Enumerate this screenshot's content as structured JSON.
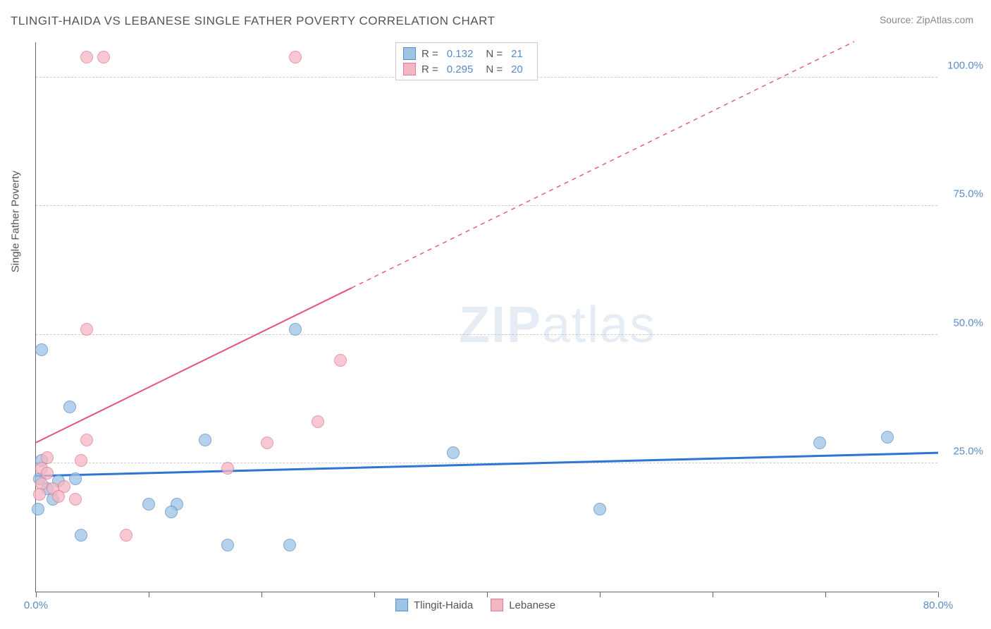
{
  "title": "TLINGIT-HAIDA VS LEBANESE SINGLE FATHER POVERTY CORRELATION CHART",
  "source": "Source: ZipAtlas.com",
  "y_axis_title": "Single Father Poverty",
  "watermark": {
    "part1": "ZIP",
    "part2": "atlas"
  },
  "chart": {
    "type": "scatter",
    "background_color": "#ffffff",
    "grid_color": "#cccccc",
    "axis_color": "#666666",
    "label_color": "#5b8cc7",
    "title_color": "#555555",
    "title_fontsize": 17,
    "label_fontsize": 15,
    "xlim": [
      0,
      80
    ],
    "ylim": [
      0,
      107
    ],
    "x_ticks": [
      0,
      10,
      20,
      30,
      40,
      50,
      60,
      70,
      80
    ],
    "x_tick_labels": {
      "0": "0.0%",
      "80": "80.0%"
    },
    "y_ticks": [
      25,
      50,
      75,
      100
    ],
    "y_tick_labels": {
      "25": "25.0%",
      "50": "50.0%",
      "75": "75.0%",
      "100": "100.0%"
    },
    "marker_radius": 9,
    "marker_stroke_width": 1.5,
    "marker_fill_opacity": 0.35,
    "series": [
      {
        "name": "Tlingit-Haida",
        "color_fill": "#9dc3e6",
        "color_stroke": "#5b8cc7",
        "R": "0.132",
        "N": "21",
        "trend": {
          "y_at_x0": 22.5,
          "y_at_xmax": 27.0,
          "solid_end_x": 80,
          "line_color": "#2e75d6",
          "line_width": 3
        },
        "points": [
          {
            "x": 0.5,
            "y": 47.0
          },
          {
            "x": 3.0,
            "y": 36.0
          },
          {
            "x": 0.2,
            "y": 16.0
          },
          {
            "x": 3.5,
            "y": 22.0
          },
          {
            "x": 23.0,
            "y": 51.0
          },
          {
            "x": 15.0,
            "y": 29.5
          },
          {
            "x": 37.0,
            "y": 27.0
          },
          {
            "x": 50.0,
            "y": 16.0
          },
          {
            "x": 69.5,
            "y": 29.0
          },
          {
            "x": 75.5,
            "y": 30.0
          },
          {
            "x": 10.0,
            "y": 17.0
          },
          {
            "x": 12.5,
            "y": 17.0
          },
          {
            "x": 12.0,
            "y": 15.5
          },
          {
            "x": 4.0,
            "y": 11.0
          },
          {
            "x": 17.0,
            "y": 9.0
          },
          {
            "x": 22.5,
            "y": 9.0
          },
          {
            "x": 0.5,
            "y": 25.5
          },
          {
            "x": 1.0,
            "y": 20.0
          },
          {
            "x": 2.0,
            "y": 21.5
          },
          {
            "x": 1.5,
            "y": 18.0
          },
          {
            "x": 0.3,
            "y": 22.0
          }
        ]
      },
      {
        "name": "Lebanese",
        "color_fill": "#f5b6c4",
        "color_stroke": "#e27a93",
        "R": "0.295",
        "N": "20",
        "trend": {
          "y_at_x0": 29.0,
          "y_at_xmax": 115.0,
          "solid_end_x": 28,
          "line_color": "#e6537a",
          "line_width": 2
        },
        "points": [
          {
            "x": 4.5,
            "y": 104.0
          },
          {
            "x": 6.0,
            "y": 104.0
          },
          {
            "x": 23.0,
            "y": 104.0
          },
          {
            "x": 4.5,
            "y": 51.0
          },
          {
            "x": 27.0,
            "y": 45.0
          },
          {
            "x": 25.0,
            "y": 33.0
          },
          {
            "x": 20.5,
            "y": 29.0
          },
          {
            "x": 17.0,
            "y": 24.0
          },
          {
            "x": 4.5,
            "y": 29.5
          },
          {
            "x": 4.0,
            "y": 25.5
          },
          {
            "x": 1.0,
            "y": 26.0
          },
          {
            "x": 0.5,
            "y": 24.0
          },
          {
            "x": 0.5,
            "y": 21.0
          },
          {
            "x": 1.5,
            "y": 20.0
          },
          {
            "x": 2.5,
            "y": 20.5
          },
          {
            "x": 2.0,
            "y": 18.5
          },
          {
            "x": 3.5,
            "y": 18.0
          },
          {
            "x": 0.3,
            "y": 19.0
          },
          {
            "x": 8.0,
            "y": 11.0
          },
          {
            "x": 1.0,
            "y": 23.0
          }
        ]
      }
    ]
  },
  "legend_top": {
    "rows": [
      {
        "swatch_fill": "#9dc3e6",
        "swatch_stroke": "#5b8cc7",
        "r_label": "R =",
        "r_val": "0.132",
        "n_label": "N =",
        "n_val": "21"
      },
      {
        "swatch_fill": "#f5b6c4",
        "swatch_stroke": "#e27a93",
        "r_label": "R =",
        "r_val": "0.295",
        "n_label": "N =",
        "n_val": "20"
      }
    ]
  },
  "legend_bottom": {
    "items": [
      {
        "swatch_fill": "#9dc3e6",
        "swatch_stroke": "#5b8cc7",
        "label": "Tlingit-Haida"
      },
      {
        "swatch_fill": "#f5b6c4",
        "swatch_stroke": "#e27a93",
        "label": "Lebanese"
      }
    ]
  }
}
